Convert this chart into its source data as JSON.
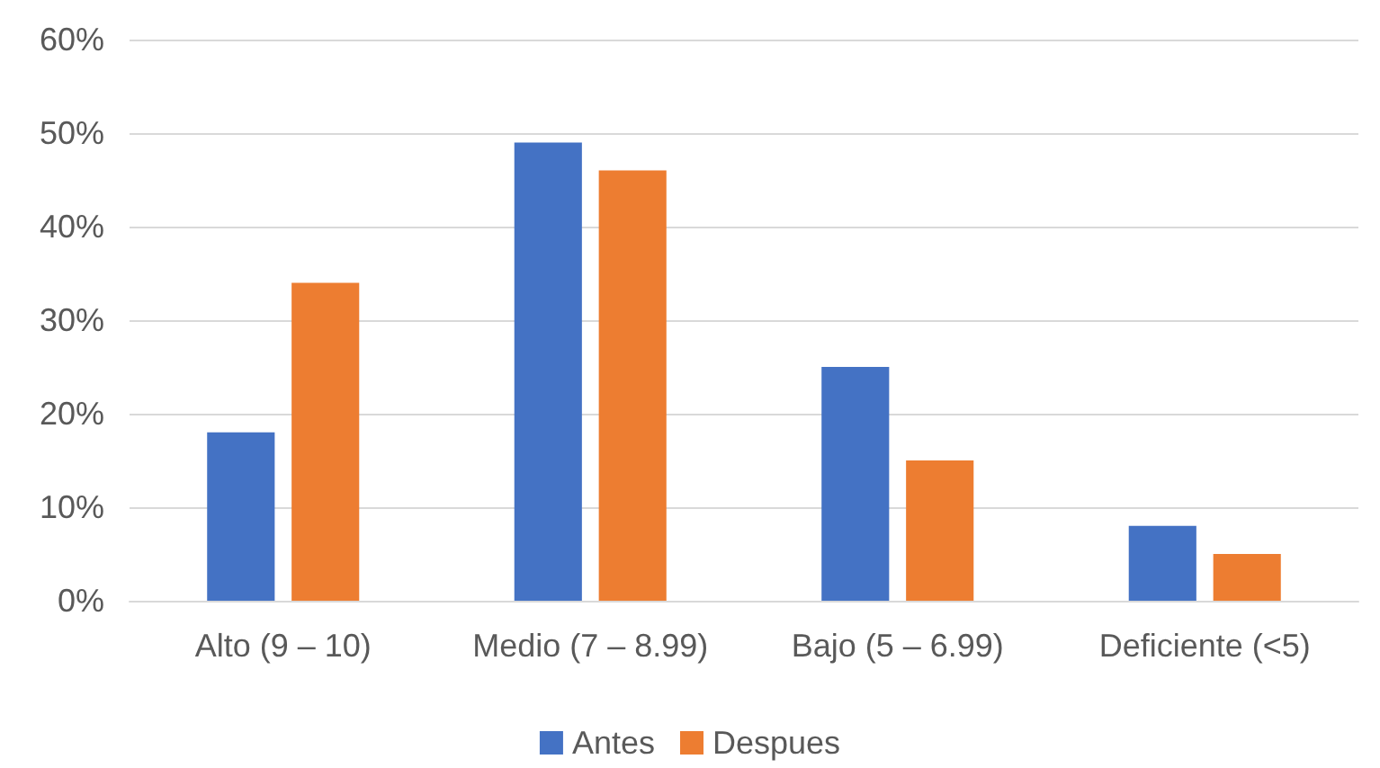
{
  "chart_data": {
    "type": "bar",
    "categories": [
      "Alto (9 – 10)",
      "Medio (7 – 8.99)",
      "Bajo (5 – 6.99)",
      "Deficiente (<5)"
    ],
    "series": [
      {
        "name": "Antes",
        "color": "#4472c4",
        "values": [
          18,
          49,
          25,
          8
        ]
      },
      {
        "name": "Despues",
        "color": "#ed7d31",
        "values": [
          34,
          46,
          15,
          5
        ]
      }
    ],
    "ylim": [
      0,
      60
    ],
    "yticks": [
      {
        "value": 0,
        "label": "0%"
      },
      {
        "value": 10,
        "label": "10%"
      },
      {
        "value": 20,
        "label": "20%"
      },
      {
        "value": 30,
        "label": "30%"
      },
      {
        "value": 40,
        "label": "40%"
      },
      {
        "value": 50,
        "label": "50%"
      },
      {
        "value": 60,
        "label": "60%"
      }
    ],
    "grid": "y",
    "legend": "bottom"
  }
}
